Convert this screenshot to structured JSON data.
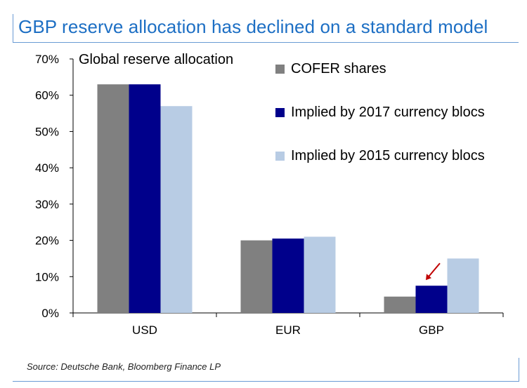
{
  "header": {
    "title": "GBP reserve allocation has declined on a standard model"
  },
  "footer": {
    "source": "Source: Deutsche Bank, Bloomberg Finance LP"
  },
  "chart_data": {
    "type": "bar",
    "subtitle": "Global reserve allocation",
    "categories": [
      "USD",
      "EUR",
      "GBP"
    ],
    "series": [
      {
        "name": "COFER shares",
        "color": "#808080",
        "values": [
          63,
          20,
          4.5
        ]
      },
      {
        "name": "Implied by 2017 currency blocs",
        "color": "#00008b",
        "values": [
          63,
          20.5,
          7.5
        ]
      },
      {
        "name": "Implied by 2015 currency blocs",
        "color": "#b8cce4",
        "values": [
          57,
          21,
          15
        ]
      }
    ],
    "ylim": [
      0,
      70
    ],
    "yticks": [
      0,
      10,
      20,
      30,
      40,
      50,
      60,
      70
    ],
    "ytick_labels": [
      "0%",
      "10%",
      "20%",
      "30%",
      "40%",
      "50%",
      "60%",
      "70%"
    ],
    "legend_position": "top-right",
    "grid": false,
    "annotation": {
      "type": "arrow",
      "target_category": "GBP",
      "target_series": "Implied by 2017 currency blocs",
      "color": "#c00000"
    }
  }
}
